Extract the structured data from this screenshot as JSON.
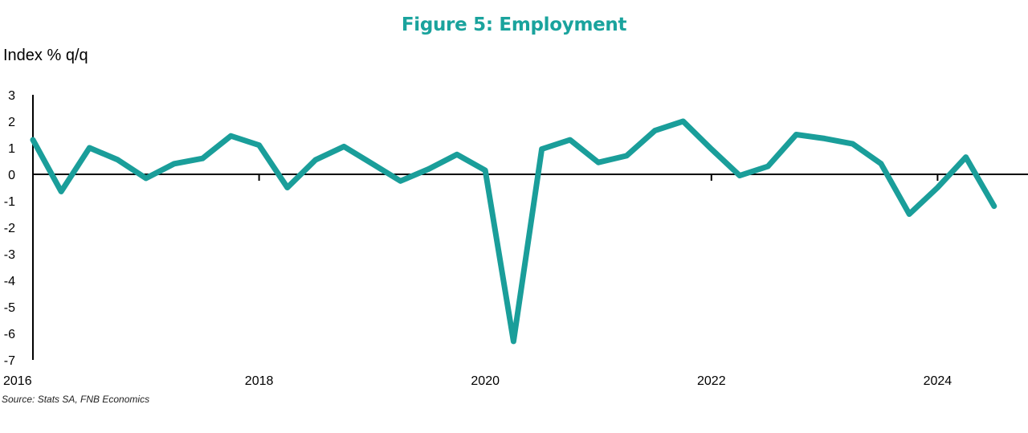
{
  "chart_data": {
    "type": "line",
    "title": "Figure 5: Employment",
    "ylabel": "Index % q/q",
    "xlabel": "",
    "ylim": [
      -7,
      3
    ],
    "yticks": [
      "3",
      "2",
      "1",
      "0",
      "-1",
      "-2",
      "-3",
      "-4",
      "-5",
      "-6",
      "-7"
    ],
    "xlim": [
      2016,
      2024.75
    ],
    "xticks": [
      "2016",
      "2018",
      "2020",
      "2022",
      "2024"
    ],
    "grid": false,
    "legend": "none",
    "line_color": "#1a9e9a",
    "series": [
      {
        "x": [
          2016.0,
          2016.25,
          2016.5,
          2016.75,
          2017.0,
          2017.25,
          2017.5,
          2017.75,
          2018.0,
          2018.25,
          2018.5,
          2018.75,
          2019.0,
          2019.25,
          2019.5,
          2019.75,
          2020.0,
          2020.25,
          2020.5,
          2020.75,
          2021.0,
          2021.25,
          2021.5,
          2021.75,
          2022.0,
          2022.25,
          2022.5,
          2022.75,
          2023.0,
          2023.25,
          2023.5,
          2023.75,
          2024.0,
          2024.25,
          2024.5
        ],
        "values": [
          1.3,
          -0.65,
          1.0,
          0.55,
          -0.15,
          0.4,
          0.6,
          1.45,
          1.1,
          -0.5,
          0.55,
          1.05,
          0.4,
          -0.25,
          0.2,
          0.75,
          0.15,
          -6.3,
          0.95,
          1.3,
          0.45,
          0.7,
          1.65,
          2.0,
          0.95,
          -0.05,
          0.3,
          1.5,
          1.35,
          1.15,
          0.4,
          -1.5,
          -0.5,
          0.65,
          -1.2
        ]
      }
    ]
  },
  "source": "Source: Stats SA, FNB Economics"
}
